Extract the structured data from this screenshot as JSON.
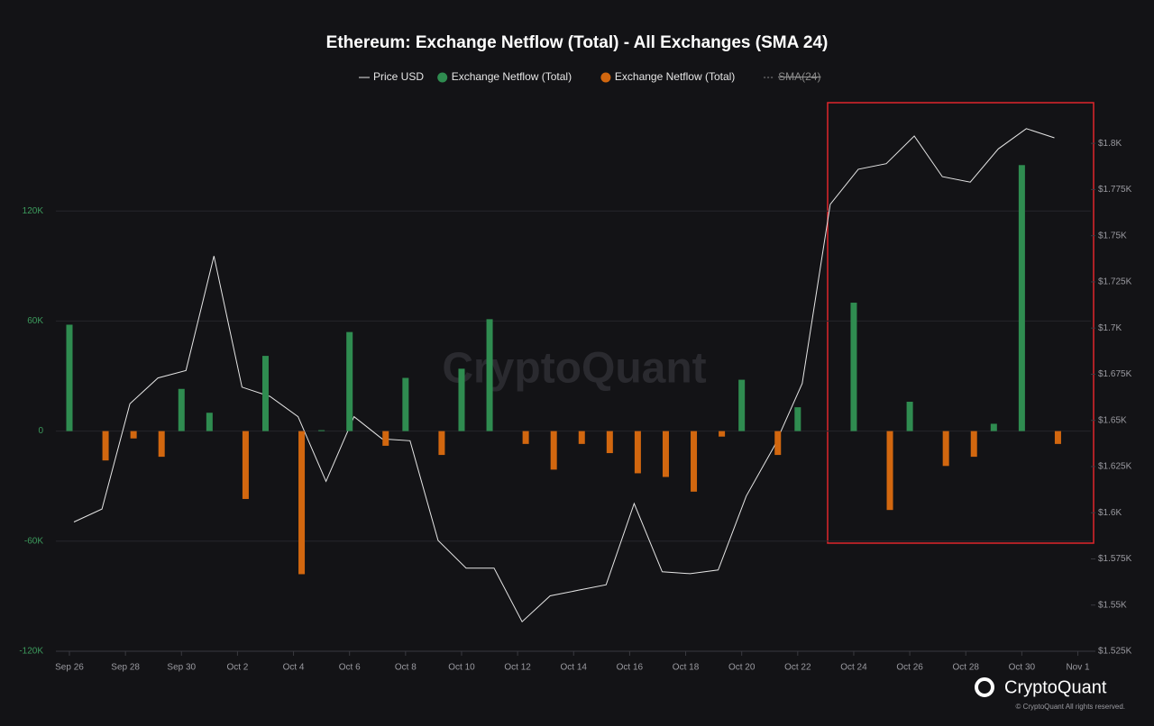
{
  "chart_data": {
    "type": "bar-line",
    "title": "Ethereum: Exchange Netflow (Total) - All Exchanges (SMA 24)",
    "watermark": "CryptoQuant",
    "footer": {
      "brand": "CryptoQuant",
      "copyright": "© CryptoQuant All rights reserved."
    },
    "categories": [
      "Sep 26",
      null,
      "Sep 28",
      null,
      "Sep 30",
      null,
      "Oct 2",
      null,
      "Oct 4",
      null,
      "Oct 6",
      null,
      "Oct 8",
      null,
      "Oct 10",
      null,
      "Oct 12",
      null,
      "Oct 14",
      null,
      "Oct 16",
      null,
      "Oct 18",
      null,
      "Oct 20",
      null,
      "Oct 22",
      null,
      "Oct 24",
      null,
      "Oct 26",
      null,
      "Oct 28",
      null,
      "Oct 30",
      null,
      "Nov 1"
    ],
    "series": [
      {
        "name": "Price USD",
        "color": "#e6e6e6",
        "kind": "line",
        "axis": "y2",
        "values": [
          1595,
          1602,
          1659,
          1673,
          1677,
          1739,
          1668,
          1663,
          1652,
          1617,
          1652,
          1640,
          1639,
          1585,
          1570,
          1570,
          1541,
          1555,
          1558,
          1561,
          1605,
          1568,
          1567,
          1569,
          1609,
          1636,
          1670,
          1767,
          1786,
          1789,
          1804,
          1782,
          1779,
          1797,
          1808,
          1803,
          null
        ]
      },
      {
        "name": "Exchange Netflow (Total)",
        "color": "#2f8c50",
        "kind": "bar",
        "values": [
          58000,
          null,
          null,
          null,
          23000,
          10000,
          null,
          41000,
          null,
          500,
          54000,
          null,
          29000,
          null,
          34000,
          61000,
          null,
          null,
          null,
          null,
          null,
          null,
          null,
          null,
          28000,
          null,
          13000,
          null,
          70000,
          null,
          16000,
          null,
          null,
          4000,
          145000,
          null,
          null
        ]
      },
      {
        "name": "Exchange Netflow (Total)",
        "color": "#d2670f",
        "kind": "bar",
        "values": [
          null,
          -16000,
          -4000,
          -14000,
          null,
          null,
          -37000,
          null,
          -78000,
          null,
          null,
          -8000,
          null,
          -13000,
          null,
          null,
          -7000,
          -21000,
          -7000,
          -12000,
          -23000,
          -25000,
          -33000,
          -3000,
          null,
          -13000,
          null,
          null,
          null,
          -43000,
          null,
          -19000,
          -14000,
          null,
          null,
          -7000,
          null
        ]
      },
      {
        "name": "SMA(24)",
        "color": "#8a8a8a",
        "kind": "line",
        "hidden": true
      }
    ],
    "ylim": [
      -120000,
      180000
    ],
    "yticks": [
      {
        "value": -120000,
        "label": "-120K"
      },
      {
        "value": -60000,
        "label": "-60K"
      },
      0,
      {
        "value": 60000,
        "label": "60K"
      },
      {
        "value": 120000,
        "label": "120K"
      }
    ],
    "y2lim": [
      1525,
      1823
    ],
    "y2ticks": [
      {
        "value": 1525,
        "label": "$1.525K"
      },
      {
        "value": 1550,
        "label": "$1.55K"
      },
      {
        "value": 1575,
        "label": "$1.575K"
      },
      {
        "value": 1600,
        "label": "$1.6K"
      },
      {
        "value": 1625,
        "label": "$1.625K"
      },
      {
        "value": 1650,
        "label": "$1.65K"
      },
      {
        "value": 1675,
        "label": "$1.675K"
      },
      {
        "value": 1700,
        "label": "$1.7K"
      },
      {
        "value": 1725,
        "label": "$1.725K"
      },
      {
        "value": 1750,
        "label": "$1.75K"
      },
      {
        "value": 1775,
        "label": "$1.775K"
      },
      {
        "value": 1800,
        "label": "$1.8K"
      }
    ],
    "grid": true,
    "legend": "top"
  }
}
